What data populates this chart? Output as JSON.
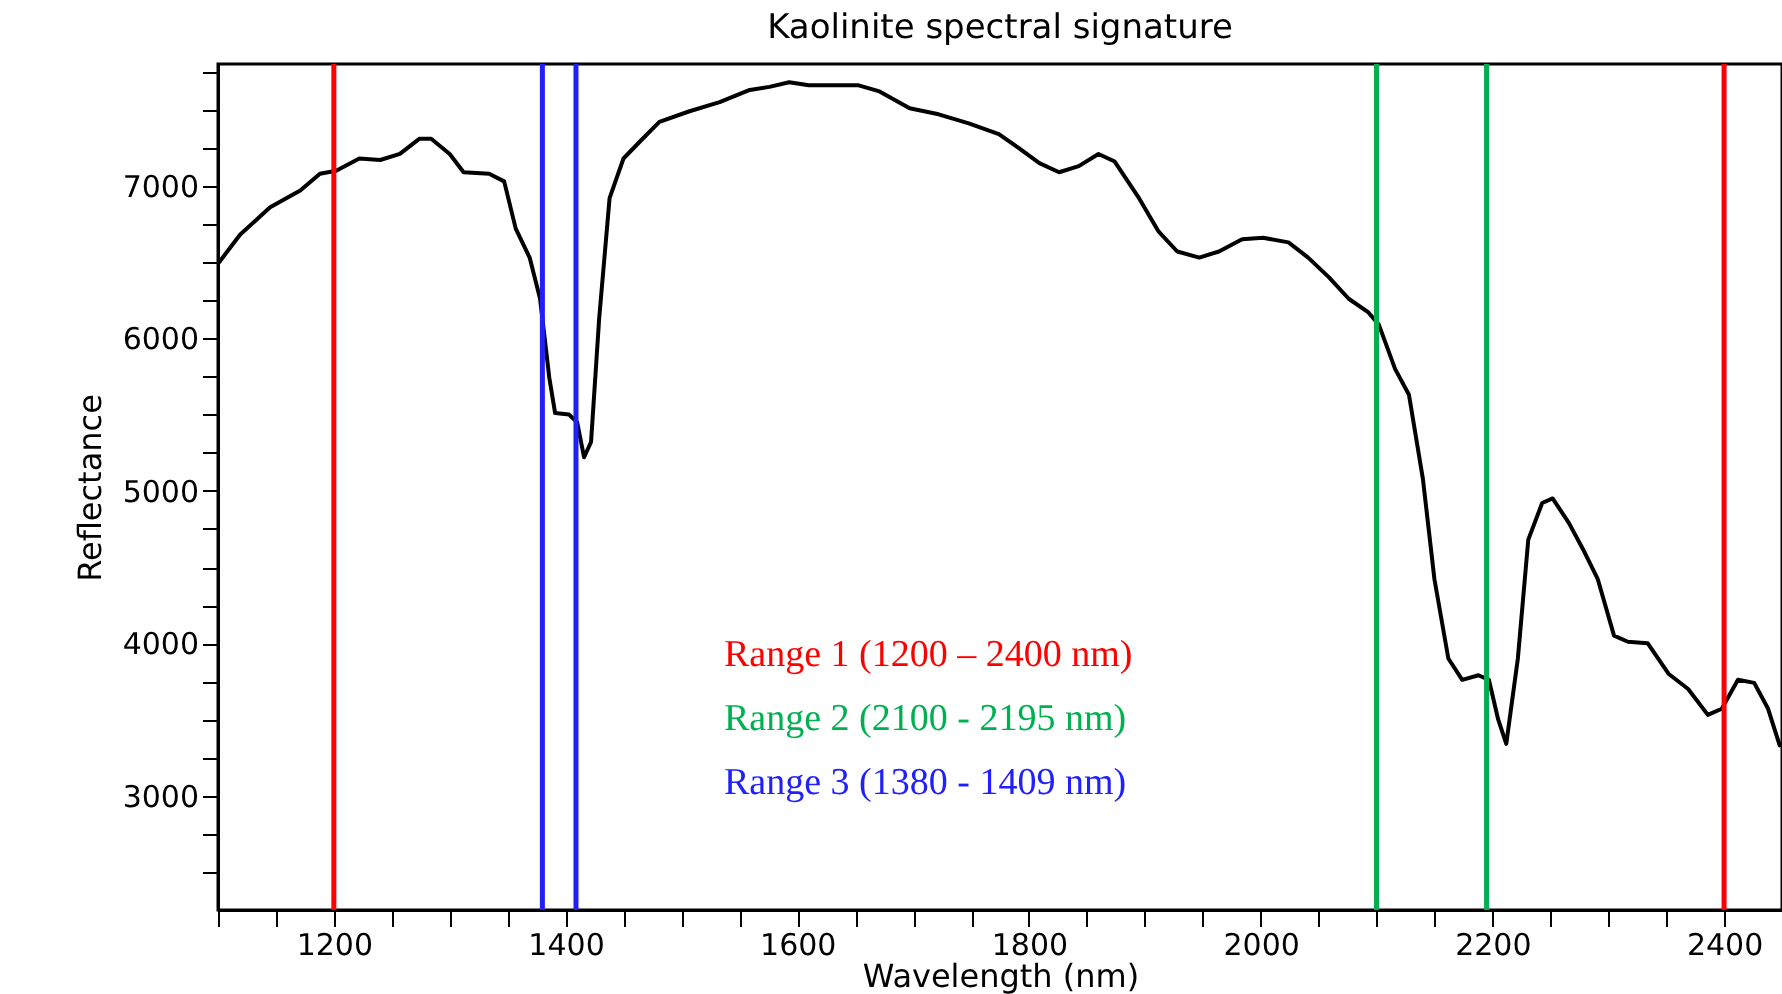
{
  "chart_data": {
    "type": "line",
    "title": "Kaolinite spectral signature",
    "xlabel": "Wavelength (nm)",
    "ylabel": "Reflectance",
    "xlim": [
      1100,
      2450
    ],
    "ylim": [
      2250,
      7800
    ],
    "xticks": [
      {
        "value": 1100,
        "label": null
      },
      {
        "value": 1150,
        "label": null
      },
      1200,
      {
        "value": 1250,
        "label": null
      },
      {
        "value": 1300,
        "label": null
      },
      {
        "value": 1350,
        "label": null
      },
      1400,
      {
        "value": 1450,
        "label": null
      },
      {
        "value": 1500,
        "label": null
      },
      {
        "value": 1550,
        "label": null
      },
      1600,
      {
        "value": 1650,
        "label": null
      },
      {
        "value": 1700,
        "label": null
      },
      {
        "value": 1750,
        "label": null
      },
      1800,
      {
        "value": 1850,
        "label": null
      },
      {
        "value": 1900,
        "label": null
      },
      {
        "value": 1950,
        "label": null
      },
      2000,
      {
        "value": 2050,
        "label": null
      },
      {
        "value": 2100,
        "label": null
      },
      {
        "value": 2150,
        "label": null
      },
      2200,
      {
        "value": 2250,
        "label": null
      },
      {
        "value": 2300,
        "label": null
      },
      {
        "value": 2350,
        "label": null
      },
      2400
    ],
    "yticks": [
      {
        "value": 2500,
        "label": null
      },
      {
        "value": 2750,
        "label": null
      },
      3000,
      {
        "value": 3250,
        "label": null
      },
      {
        "value": 3500,
        "label": null
      },
      {
        "value": 3750,
        "label": null
      },
      4000,
      {
        "value": 4250,
        "label": null
      },
      {
        "value": 4500,
        "label": null
      },
      {
        "value": 4750,
        "label": null
      },
      5000,
      {
        "value": 5250,
        "label": null
      },
      {
        "value": 5500,
        "label": null
      },
      {
        "value": 5750,
        "label": null
      },
      6000,
      {
        "value": 6250,
        "label": null
      },
      {
        "value": 6500,
        "label": null
      },
      {
        "value": 6750,
        "label": null
      },
      7000,
      {
        "value": 7250,
        "label": null
      },
      {
        "value": 7500,
        "label": null
      },
      {
        "value": 7750,
        "label": null
      }
    ],
    "x": [
      1100,
      1119,
      1145,
      1171,
      1188,
      1202,
      1222,
      1240,
      1257,
      1274,
      1284,
      1300,
      1312,
      1334,
      1347,
      1357,
      1369,
      1378,
      1386,
      1391,
      1403,
      1410,
      1416,
      1422,
      1429,
      1438,
      1450,
      1464,
      1481,
      1507,
      1533,
      1559,
      1576,
      1593,
      1610,
      1628,
      1653,
      1671,
      1697,
      1722,
      1748,
      1774,
      1791,
      1809,
      1826,
      1843,
      1860,
      1874,
      1895,
      1912,
      1928,
      1947,
      1964,
      1984,
      2002,
      2024,
      2041,
      2059,
      2076,
      2093,
      2102,
      2116,
      2128,
      2140,
      2150,
      2162,
      2174,
      2188,
      2197,
      2205,
      2212,
      2222,
      2231,
      2243,
      2252,
      2266,
      2278,
      2291,
      2305,
      2317,
      2334,
      2352,
      2369,
      2386,
      2398,
      2412,
      2426,
      2438,
      2448
    ],
    "series": [
      {
        "color": "#000000",
        "values": [
          6490,
          6680,
          6860,
          6970,
          7080,
          7100,
          7180,
          7170,
          7210,
          7310,
          7310,
          7210,
          7090,
          7080,
          7030,
          6720,
          6530,
          6260,
          5740,
          5510,
          5500,
          5450,
          5220,
          5320,
          6130,
          6920,
          7180,
          7290,
          7420,
          7490,
          7550,
          7630,
          7650,
          7680,
          7660,
          7660,
          7660,
          7620,
          7510,
          7470,
          7410,
          7340,
          7250,
          7150,
          7090,
          7130,
          7210,
          7160,
          6920,
          6700,
          6570,
          6530,
          6570,
          6650,
          6660,
          6630,
          6530,
          6400,
          6260,
          6170,
          6090,
          5800,
          5630,
          5080,
          4420,
          3900,
          3760,
          3790,
          3760,
          3500,
          3340,
          3900,
          4680,
          4920,
          4950,
          4790,
          4620,
          4420,
          4050,
          4010,
          4000,
          3800,
          3700,
          3530,
          3570,
          3760,
          3740,
          3570,
          3330
        ]
      }
    ],
    "ref_lines": [
      {
        "axis": "x",
        "value": 1200,
        "color": "#ff0000",
        "label": "Range 1 (1200 – 2400 nm)"
      },
      {
        "axis": "x",
        "value": 2400,
        "color": "#ff0000"
      },
      {
        "axis": "x",
        "value": 2100,
        "color": "#00b050",
        "label": "Range 2 (2100 - 2195 nm)"
      },
      {
        "axis": "x",
        "value": 2195,
        "color": "#00b050"
      },
      {
        "axis": "x",
        "value": 1380,
        "color": "#2020ff",
        "label": "Range 3 (1380 - 1409 nm)"
      },
      {
        "axis": "x",
        "value": 1409,
        "color": "#2020ff"
      }
    ],
    "marker": "none",
    "line_style": "solid",
    "grid": false
  }
}
